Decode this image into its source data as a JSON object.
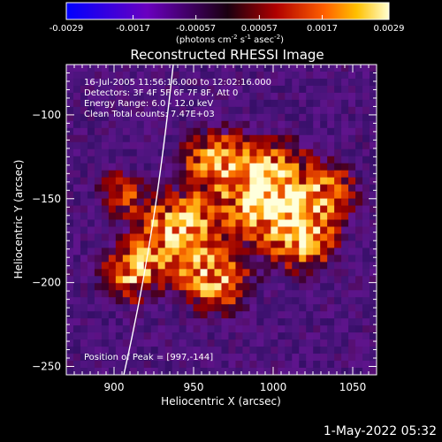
{
  "chart_data": {
    "type": "heatmap",
    "title": "Reconstructed RHESSI Image",
    "xlabel": "Heliocentric X (arcsec)",
    "ylabel": "Heliocentric Y (arcsec)",
    "xlim": [
      870,
      1065
    ],
    "ylim": [
      -255,
      -70
    ],
    "x_ticks": [
      900,
      950,
      1000,
      1050
    ],
    "y_ticks": [
      -100,
      -150,
      -200,
      -250
    ],
    "colorbar": {
      "ticks": [
        "-0.0029",
        "-0.0017",
        "-0.00057",
        "0.00057",
        "0.0017",
        "0.0029"
      ],
      "range": [
        -0.0029,
        0.0029
      ],
      "units_text": "(photons cm",
      "units_exp1": "-2",
      "units_mid1": " s",
      "units_exp2": "-1",
      "units_mid2": " asec",
      "units_exp3": "-2",
      "units_end": ")"
    },
    "annotations": [
      "16-Jul-2005 11:56:16.000 to 12:02:16.000",
      "Detectors: 3F 4F 5F 6F 7F 8F, Att 0",
      "Energy Range: 6.0 - 12.0 keV",
      "Clean    Total counts: 7.47E+03"
    ],
    "peak_text": "Position of Peak = [997,-144]",
    "peak": [
      997,
      -144
    ],
    "colors": {
      "background": "#000000",
      "text": "#ffffff"
    }
  },
  "footer": {
    "timestamp": "1-May-2022 05:32"
  }
}
